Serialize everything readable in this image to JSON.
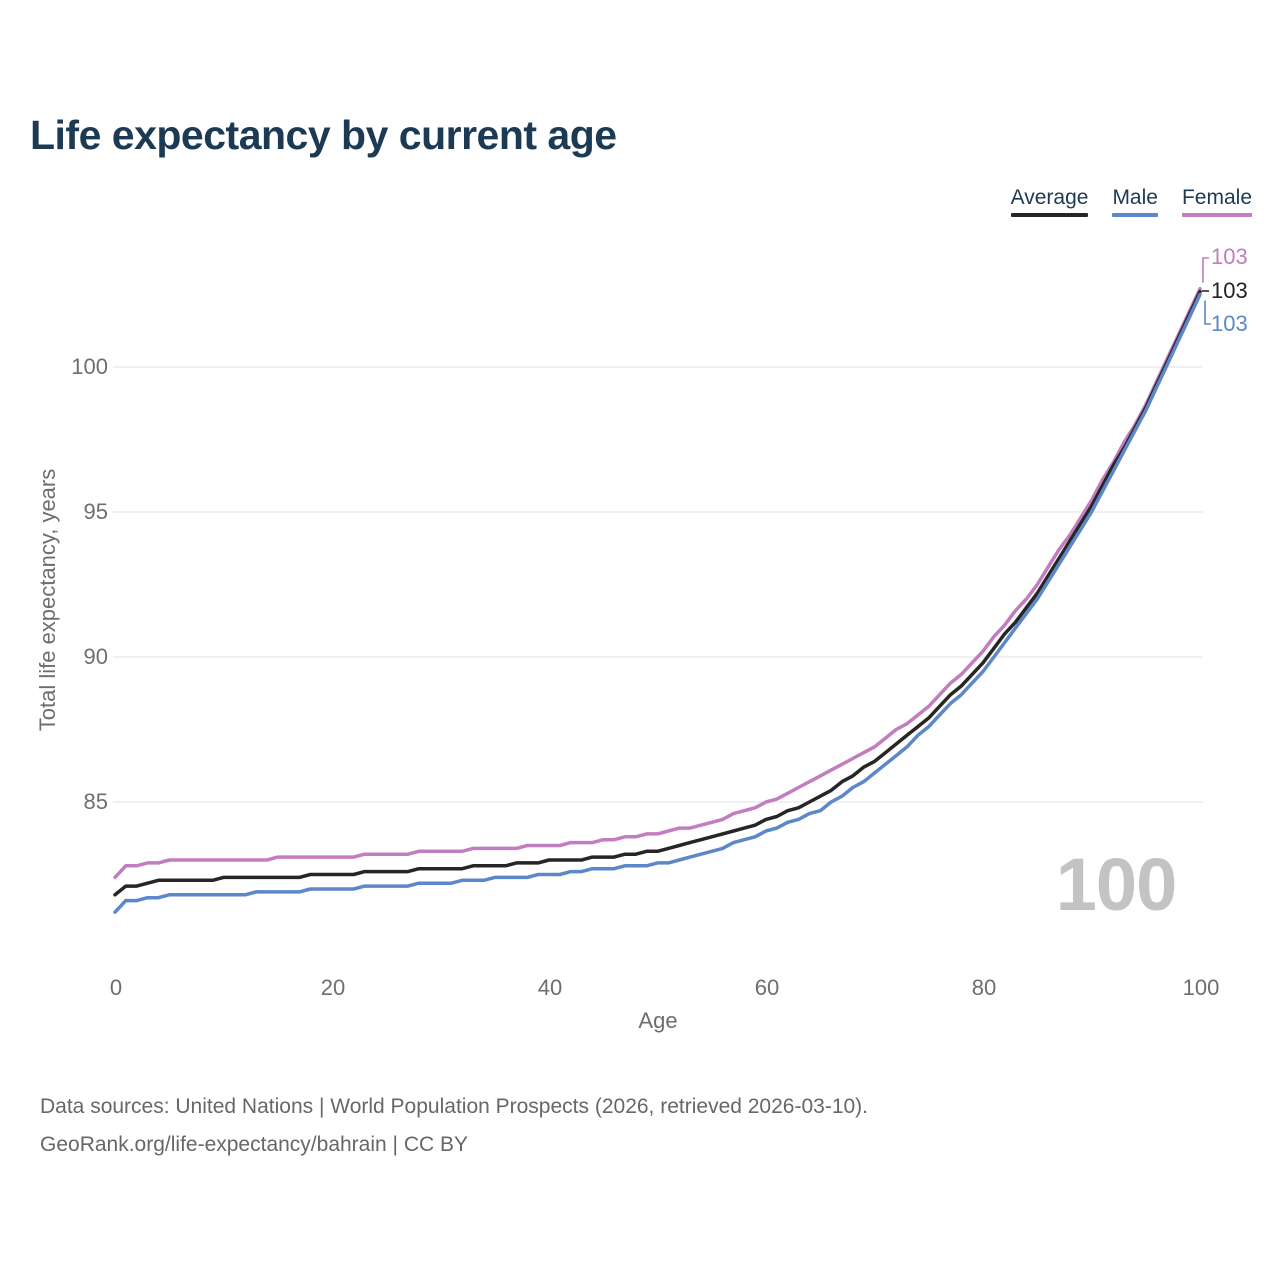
{
  "title": "Life expectancy by current age",
  "watermark": "100",
  "footer": {
    "line1": "Data sources: United Nations | World Population Prospects (2026, retrieved 2026-03-10).",
    "line2": "GeoRank.org/life-expectancy/bahrain | CC BY"
  },
  "colors": {
    "title_text": "#1d3a54",
    "axis_text": "#6e6e6e",
    "gridline": "#ebebeb",
    "watermark": "#c3c3c3",
    "average": "#262626",
    "male": "#5d87c9",
    "female": "#c27dbe"
  },
  "chart_data": {
    "type": "line",
    "title": "Life expectancy by current age",
    "xlabel": "Age",
    "ylabel": "Total life expectancy, years",
    "xlim": [
      0,
      100
    ],
    "ylim": [
      81,
      103.5
    ],
    "x_ticks": [
      0,
      20,
      40,
      60,
      80,
      100
    ],
    "y_ticks": [
      85,
      90,
      95,
      100
    ],
    "grid": "horizontal-only",
    "legend_position": "top-right",
    "x": [
      0,
      1,
      5,
      10,
      15,
      20,
      25,
      30,
      35,
      40,
      45,
      50,
      55,
      60,
      65,
      70,
      75,
      80,
      85,
      90,
      95,
      100
    ],
    "series": [
      {
        "name": "Average",
        "color": "#262626",
        "end_label": "103",
        "values": [
          81.8,
          82.1,
          82.3,
          82.35,
          82.4,
          82.5,
          82.6,
          82.7,
          82.8,
          82.95,
          83.1,
          83.3,
          83.75,
          84.35,
          85.15,
          86.4,
          87.9,
          89.8,
          92.2,
          95.2,
          98.6,
          102.6
        ]
      },
      {
        "name": "Male",
        "color": "#5d87c9",
        "end_label": "103",
        "values": [
          81.2,
          81.6,
          81.75,
          81.8,
          81.9,
          82.0,
          82.1,
          82.2,
          82.35,
          82.5,
          82.7,
          82.85,
          83.3,
          83.95,
          84.7,
          85.95,
          87.6,
          89.5,
          92.0,
          95.0,
          98.5,
          102.5
        ]
      },
      {
        "name": "Female",
        "color": "#c27dbe",
        "end_label": "103",
        "values": [
          82.4,
          82.75,
          82.95,
          83.0,
          83.05,
          83.1,
          83.2,
          83.3,
          83.4,
          83.5,
          83.65,
          83.9,
          84.3,
          84.95,
          85.85,
          86.9,
          88.3,
          90.2,
          92.5,
          95.4,
          98.7,
          102.7
        ]
      }
    ]
  }
}
